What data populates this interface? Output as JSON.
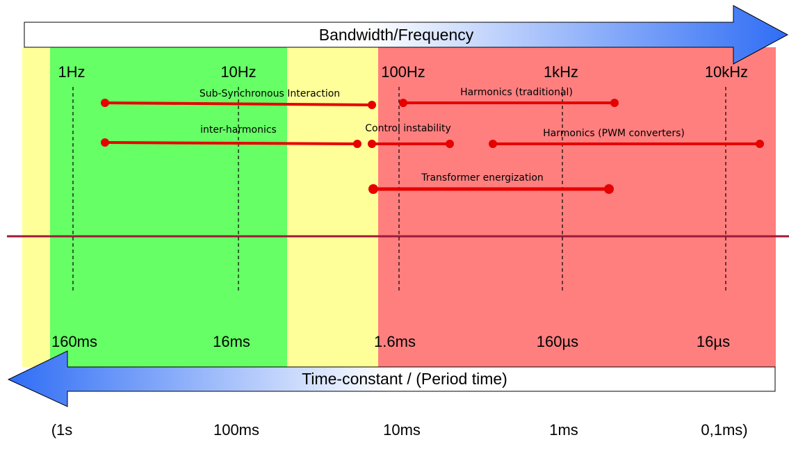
{
  "top_arrow": {
    "title": "Bandwidth/Frequency"
  },
  "bottom_arrow": {
    "title": "Time-constant / (Period time)"
  },
  "frequency_labels": [
    "1Hz",
    "10Hz",
    "100Hz",
    "1kHz",
    "10kHz"
  ],
  "time_constant_labels": [
    "160ms",
    "16ms",
    "1.6ms",
    "160µs",
    "16µs"
  ],
  "period_labels": [
    "(1s",
    "100ms",
    "10ms",
    "1ms",
    "0,1ms)"
  ],
  "phenomena": [
    {
      "label": "Sub-Synchronous Interaction",
      "from_hz": 1.2,
      "to_hz": 70
    },
    {
      "label": "Harmonics (traditional)",
      "from_hz": 100,
      "to_hz": 1300
    },
    {
      "label": "inter-harmonics",
      "from_hz": 1.2,
      "to_hz": 55
    },
    {
      "label": "Control instability",
      "from_hz": 70,
      "to_hz": 300
    },
    {
      "label": "Harmonics (PWM converters)",
      "from_hz": 420,
      "to_hz": 13000
    },
    {
      "label": "Transformer energization",
      "from_hz": 70,
      "to_hz": 1200
    }
  ],
  "colors": {
    "yellow_band": "#ffff99",
    "green_band": "#66ff66",
    "red_band": "#ff7f7f",
    "range_line": "#e60000",
    "divider_line": "#a0173a",
    "arrow_blue": "#3b7bff"
  }
}
